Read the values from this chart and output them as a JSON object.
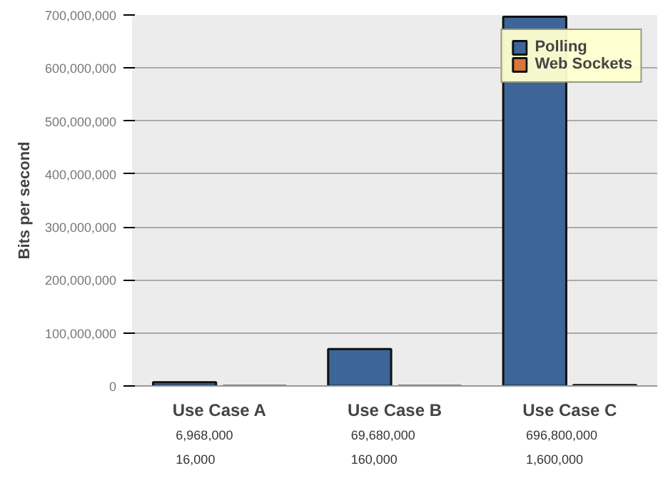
{
  "chart_data": {
    "type": "bar",
    "ylabel": "Bits per second",
    "categories": [
      "Use Case A",
      "Use Case B",
      "Use Case C"
    ],
    "series": [
      {
        "name": "Polling",
        "color": "#3d6597",
        "values": [
          6968000,
          69680000,
          696800000
        ],
        "value_labels": [
          "6,968,000",
          "69,680,000",
          "696,800,000"
        ]
      },
      {
        "name": "Web Sockets",
        "color": "#d9773b",
        "values": [
          16000,
          160000,
          1600000
        ],
        "value_labels": [
          "16,000",
          "160,000",
          "1,600,000"
        ]
      }
    ],
    "ylim": [
      0,
      700000000
    ],
    "yticks": [
      0,
      {
        "value": 100000000,
        "label": "100,000,000"
      },
      {
        "value": 200000000,
        "label": "200,000,000"
      },
      {
        "value": 300000000,
        "label": "300,000,000"
      },
      {
        "value": 400000000,
        "label": "400,000,000"
      },
      {
        "value": 500000000,
        "label": "500,000,000"
      },
      {
        "value": 600000000,
        "label": "600,000,000"
      },
      {
        "value": 700000000,
        "label": "700,000,000"
      }
    ],
    "grid": "y",
    "legend": "top right"
  }
}
